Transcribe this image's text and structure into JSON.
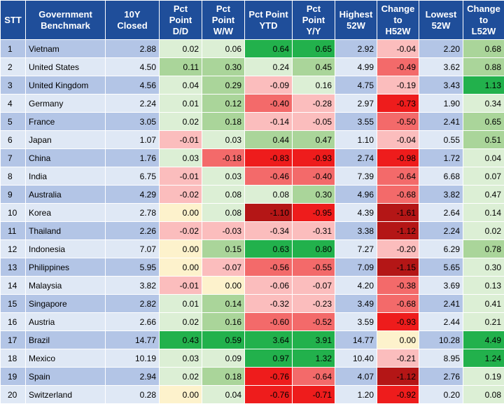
{
  "headers": [
    "STT",
    "Government Benchmark",
    "10Y Closed",
    "Pct Point D/D",
    "Pct Point W/W",
    "Pct Point YTD",
    "Pct Point Y/Y",
    "Highest 52W",
    "Change to H52W",
    "Lowest 52W",
    "Change to L52W"
  ],
  "header_lines": [
    [
      "STT"
    ],
    [
      "Government",
      "Benchmark"
    ],
    [
      "10Y Closed"
    ],
    [
      "Pct",
      "Point",
      "D/D"
    ],
    [
      "Pct",
      "Point",
      "W/W"
    ],
    [
      "Pct Point",
      "YTD"
    ],
    [
      "Pct",
      "Point",
      "Y/Y"
    ],
    [
      "Highest",
      "52W"
    ],
    [
      "Change",
      "to",
      "H52W"
    ],
    [
      "Lowest",
      "52W"
    ],
    [
      "Change",
      "to",
      "L52W"
    ]
  ],
  "rows": [
    {
      "stt": "1",
      "country": "Vietnam",
      "closed": "2.88",
      "dd": "0.02",
      "ww": "0.06",
      "ytd": "0.64",
      "yy": "0.65",
      "high": "2.92",
      "ch": "-0.04",
      "low": "2.20",
      "cl": "0.68"
    },
    {
      "stt": "2",
      "country": "United States",
      "closed": "4.50",
      "dd": "0.11",
      "ww": "0.30",
      "ytd": "0.24",
      "yy": "0.45",
      "high": "4.99",
      "ch": "-0.49",
      "low": "3.62",
      "cl": "0.88"
    },
    {
      "stt": "3",
      "country": "United Kingdom",
      "closed": "4.56",
      "dd": "0.04",
      "ww": "0.29",
      "ytd": "-0.09",
      "yy": "0.16",
      "high": "4.75",
      "ch": "-0.19",
      "low": "3.43",
      "cl": "1.13"
    },
    {
      "stt": "4",
      "country": "Germany",
      "closed": "2.24",
      "dd": "0.01",
      "ww": "0.12",
      "ytd": "-0.40",
      "yy": "-0.28",
      "high": "2.97",
      "ch": "-0.73",
      "low": "1.90",
      "cl": "0.34"
    },
    {
      "stt": "5",
      "country": "France",
      "closed": "3.05",
      "dd": "0.02",
      "ww": "0.18",
      "ytd": "-0.14",
      "yy": "-0.05",
      "high": "3.55",
      "ch": "-0.50",
      "low": "2.41",
      "cl": "0.65"
    },
    {
      "stt": "6",
      "country": "Japan",
      "closed": "1.07",
      "dd": "-0.01",
      "ww": "0.03",
      "ytd": "0.44",
      "yy": "0.47",
      "high": "1.10",
      "ch": "-0.04",
      "low": "0.55",
      "cl": "0.51"
    },
    {
      "stt": "7",
      "country": "China",
      "closed": "1.76",
      "dd": "0.03",
      "ww": "-0.18",
      "ytd": "-0.83",
      "yy": "-0.93",
      "high": "2.74",
      "ch": "-0.98",
      "low": "1.72",
      "cl": "0.04"
    },
    {
      "stt": "8",
      "country": "India",
      "closed": "6.75",
      "dd": "-0.01",
      "ww": "0.03",
      "ytd": "-0.46",
      "yy": "-0.40",
      "high": "7.39",
      "ch": "-0.64",
      "low": "6.68",
      "cl": "0.07"
    },
    {
      "stt": "9",
      "country": "Australia",
      "closed": "4.29",
      "dd": "-0.02",
      "ww": "0.08",
      "ytd": "0.08",
      "yy": "0.30",
      "high": "4.96",
      "ch": "-0.68",
      "low": "3.82",
      "cl": "0.47"
    },
    {
      "stt": "10",
      "country": "Korea",
      "closed": "2.78",
      "dd": "0.00",
      "ww": "0.08",
      "ytd": "-1.10",
      "yy": "-0.95",
      "high": "4.39",
      "ch": "-1.61",
      "low": "2.64",
      "cl": "0.14"
    },
    {
      "stt": "11",
      "country": "Thailand",
      "closed": "2.26",
      "dd": "-0.02",
      "ww": "-0.03",
      "ytd": "-0.34",
      "yy": "-0.31",
      "high": "3.38",
      "ch": "-1.12",
      "low": "2.24",
      "cl": "0.02"
    },
    {
      "stt": "12",
      "country": "Indonesia",
      "closed": "7.07",
      "dd": "0.00",
      "ww": "0.15",
      "ytd": "0.63",
      "yy": "0.80",
      "high": "7.27",
      "ch": "-0.20",
      "low": "6.29",
      "cl": "0.78"
    },
    {
      "stt": "13",
      "country": "Philippines",
      "closed": "5.95",
      "dd": "0.00",
      "ww": "-0.07",
      "ytd": "-0.56",
      "yy": "-0.55",
      "high": "7.09",
      "ch": "-1.15",
      "low": "5.65",
      "cl": "0.30"
    },
    {
      "stt": "14",
      "country": "Malaysia",
      "closed": "3.82",
      "dd": "-0.01",
      "ww": "0.00",
      "ytd": "-0.06",
      "yy": "-0.07",
      "high": "4.20",
      "ch": "-0.38",
      "low": "3.69",
      "cl": "0.13"
    },
    {
      "stt": "15",
      "country": "Singapore",
      "closed": "2.82",
      "dd": "0.01",
      "ww": "0.14",
      "ytd": "-0.32",
      "yy": "-0.23",
      "high": "3.49",
      "ch": "-0.68",
      "low": "2.41",
      "cl": "0.41"
    },
    {
      "stt": "16",
      "country": "Austria",
      "closed": "2.66",
      "dd": "0.02",
      "ww": "0.16",
      "ytd": "-0.60",
      "yy": "-0.52",
      "high": "3.59",
      "ch": "-0.93",
      "low": "2.44",
      "cl": "0.21"
    },
    {
      "stt": "17",
      "country": "Brazil",
      "closed": "14.77",
      "dd": "0.43",
      "ww": "0.59",
      "ytd": "3.64",
      "yy": "3.91",
      "high": "14.77",
      "ch": "0.00",
      "low": "10.28",
      "cl": "4.49"
    },
    {
      "stt": "18",
      "country": "Mexico",
      "closed": "10.19",
      "dd": "0.03",
      "ww": "0.09",
      "ytd": "0.97",
      "yy": "1.32",
      "high": "10.40",
      "ch": "-0.21",
      "low": "8.95",
      "cl": "1.24"
    },
    {
      "stt": "19",
      "country": "Spain",
      "closed": "2.94",
      "dd": "0.02",
      "ww": "0.18",
      "ytd": "-0.76",
      "yy": "-0.64",
      "high": "4.07",
      "ch": "-1.12",
      "low": "2.76",
      "cl": "0.19"
    },
    {
      "stt": "20",
      "country": "Switzerland",
      "closed": "0.28",
      "dd": "0.00",
      "ww": "0.04",
      "ytd": "-0.76",
      "yy": "-0.71",
      "high": "1.20",
      "ch": "-0.92",
      "low": "0.20",
      "cl": "0.08"
    }
  ],
  "colors": {
    "header_bg": "#1f4e9a",
    "header_text": "#ffffff",
    "row_odd": "#b3c5e6",
    "row_even": "#dfe8f5",
    "neutral": "#fdf2cc",
    "pos_light": "#dcefd5",
    "pos_mid": "#aad59a",
    "pos_strong": "#22b14c",
    "neg_light": "#fbbdbd",
    "neg_mid": "#f36a6a",
    "neg_strong": "#ee1c1c",
    "neg_deep": "#b41616"
  }
}
